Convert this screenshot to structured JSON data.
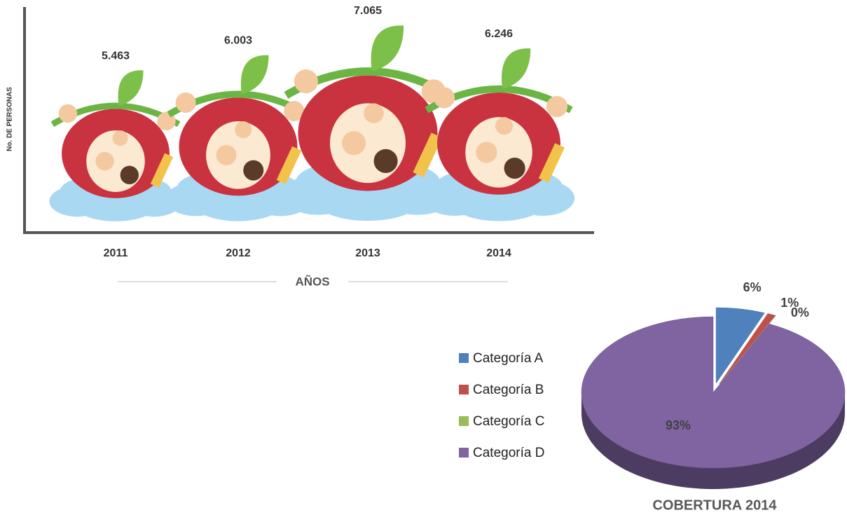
{
  "chart_data": [
    {
      "type": "bar",
      "y_label": "No. DE PERSONAS",
      "x_label": "AÑOS",
      "categories": [
        "2011",
        "2012",
        "2013",
        "2014"
      ],
      "values": [
        5463,
        6003,
        7065,
        6246
      ],
      "value_labels": [
        "5.463",
        "6.003",
        "7.065",
        "6.246"
      ],
      "ylim": [
        0,
        8000
      ]
    },
    {
      "type": "pie",
      "title": "COBERTURA 2014",
      "categories": [
        "Categoría A",
        "Categoría B",
        "Categoría C",
        "Categoría D"
      ],
      "values": [
        6,
        1,
        0,
        93
      ],
      "value_labels": [
        "6%",
        "1%",
        "0%",
        "93%"
      ],
      "colors": [
        "#4f81bd",
        "#c0504d",
        "#9bbb59",
        "#8064a2"
      ],
      "legend": "left"
    }
  ]
}
